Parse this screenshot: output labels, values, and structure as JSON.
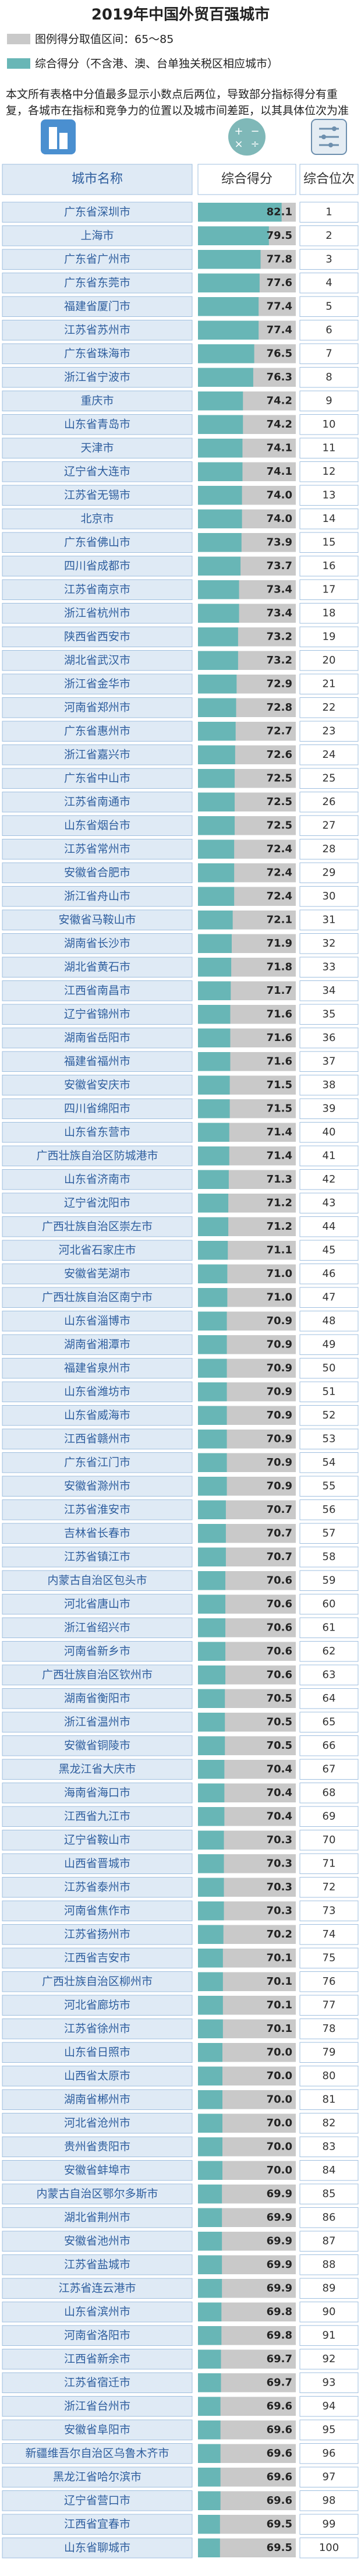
{
  "header": {
    "title": "2019年中国外贸百强城市",
    "legend_range": "图例得分取值区间：65～85",
    "legend_score": "综合得分（不含港、澳、台单独关税区相应城市）",
    "note": "本文所有表格中分值最多显示小数点后两位，导致部分指标得分有重复，各城市在指标和竞争力的位置以及城市间差距，以其具体位次为准"
  },
  "table": {
    "columns": [
      "城市名称",
      "综合得分",
      "综合位次"
    ],
    "xlim": [
      65,
      85
    ],
    "names": [
      "广东省深圳市",
      "上海市",
      "广东省广州市",
      "广东省东莞市",
      "福建省厦门市",
      "江苏省苏州市",
      "广东省珠海市",
      "浙江省宁波市",
      "重庆市",
      "山东省青岛市",
      "天津市",
      "辽宁省大连市",
      "江苏省无锡市",
      "北京市",
      "广东省佛山市",
      "四川省成都市",
      "江苏省南京市",
      "浙江省杭州市",
      "陕西省西安市",
      "湖北省武汉市",
      "浙江省金华市",
      "河南省郑州市",
      "广东省惠州市",
      "浙江省嘉兴市",
      "广东省中山市",
      "江苏省南通市",
      "山东省烟台市",
      "江苏省常州市",
      "安徽省合肥市",
      "浙江省舟山市",
      "安徽省马鞍山市",
      "湖南省长沙市",
      "湖北省黄石市",
      "江西省南昌市",
      "辽宁省锦州市",
      "湖南省岳阳市",
      "福建省福州市",
      "安徽省安庆市",
      "四川省绵阳市",
      "山东省东营市",
      "广西壮族自治区防城港市",
      "山东省济南市",
      "辽宁省沈阳市",
      "广西壮族自治区崇左市",
      "河北省石家庄市",
      "安徽省芜湖市",
      "广西壮族自治区南宁市",
      "山东省淄博市",
      "湖南省湘潭市",
      "福建省泉州市",
      "山东省潍坊市",
      "山东省威海市",
      "江西省赣州市",
      "广东省江门市",
      "安徽省滁州市",
      "江苏省淮安市",
      "吉林省长春市",
      "江苏省镇江市",
      "内蒙古自治区包头市",
      "河北省唐山市",
      "浙江省绍兴市",
      "河南省新乡市",
      "广西壮族自治区钦州市",
      "湖南省衡阳市",
      "浙江省温州市",
      "安徽省铜陵市",
      "黑龙江省大庆市",
      "海南省海口市",
      "江西省九江市",
      "辽宁省鞍山市",
      "山西省晋城市",
      "江苏省泰州市",
      "河南省焦作市",
      "江苏省扬州市",
      "江西省吉安市",
      "广西壮族自治区柳州市",
      "河北省廊坊市",
      "江苏省徐州市",
      "山东省日照市",
      "山西省太原市",
      "湖南省郴州市",
      "河北省沧州市",
      "贵州省贵阳市",
      "安徽省蚌埠市",
      "内蒙古自治区鄂尔多斯市",
      "湖北省荆州市",
      "安徽省池州市",
      "江苏省盐城市",
      "江苏省连云港市",
      "山东省滨州市",
      "河南省洛阳市",
      "江西省新余市",
      "江苏省宿迁市",
      "浙江省台州市",
      "安徽省阜阳市",
      "新疆维吾尔自治区乌鲁木齐市",
      "黑龙江省哈尔滨市",
      "辽宁省营口市",
      "江西省宜春市",
      "山东省聊城市"
    ],
    "scores": [
      82.1,
      79.5,
      77.8,
      77.6,
      77.4,
      77.4,
      76.5,
      76.3,
      74.2,
      74.2,
      74.1,
      74.1,
      74,
      74,
      73.9,
      73.7,
      73.4,
      73.4,
      73.2,
      73.2,
      72.9,
      72.8,
      72.7,
      72.6,
      72.5,
      72.5,
      72.5,
      72.4,
      72.4,
      72.4,
      72.1,
      71.9,
      71.8,
      71.7,
      71.6,
      71.6,
      71.6,
      71.5,
      71.5,
      71.4,
      71.4,
      71.3,
      71.2,
      71.2,
      71.1,
      71,
      71,
      70.9,
      70.9,
      70.9,
      70.9,
      70.9,
      70.9,
      70.9,
      70.9,
      70.7,
      70.7,
      70.7,
      70.6,
      70.6,
      70.6,
      70.6,
      70.6,
      70.5,
      70.5,
      70.5,
      70.4,
      70.4,
      70.4,
      70.3,
      70.3,
      70.3,
      70.3,
      70.2,
      70.1,
      70.1,
      70.1,
      70.1,
      70,
      70,
      70,
      70,
      70,
      70,
      69.9,
      69.9,
      69.9,
      69.9,
      69.9,
      69.8,
      69.8,
      69.7,
      69.7,
      69.6,
      69.6,
      69.6,
      69.6,
      69.6,
      69.5,
      69.5
    ],
    "score_labels": [
      "82.1",
      "79.5",
      "77.8",
      "77.6",
      "77.4",
      "77.4",
      "76.5",
      "76.3",
      "74.2",
      "74.2",
      "74.1",
      "74.1",
      "74.0",
      "74.0",
      "73.9",
      "73.7",
      "73.4",
      "73.4",
      "73.2",
      "73.2",
      "72.9",
      "72.8",
      "72.7",
      "72.6",
      "72.5",
      "72.5",
      "72.5",
      "72.4",
      "72.4",
      "72.4",
      "72.1",
      "71.9",
      "71.8",
      "71.7",
      "71.6",
      "71.6",
      "71.6",
      "71.5",
      "71.5",
      "71.4",
      "71.4",
      "71.3",
      "71.2",
      "71.2",
      "71.1",
      "71.0",
      "71.0",
      "70.9",
      "70.9",
      "70.9",
      "70.9",
      "70.9",
      "70.9",
      "70.9",
      "70.9",
      "70.7",
      "70.7",
      "70.7",
      "70.6",
      "70.6",
      "70.6",
      "70.6",
      "70.6",
      "70.5",
      "70.5",
      "70.5",
      "70.4",
      "70.4",
      "70.4",
      "70.3",
      "70.3",
      "70.3",
      "70.3",
      "70.2",
      "70.1",
      "70.1",
      "70.1",
      "70.1",
      "70.0",
      "70.0",
      "70.0",
      "70.0",
      "70.0",
      "70.0",
      "69.9",
      "69.9",
      "69.9",
      "69.9",
      "69.9",
      "69.8",
      "69.8",
      "69.7",
      "69.7",
      "69.6",
      "69.6",
      "69.6",
      "69.6",
      "69.6",
      "69.5",
      "69.5"
    ],
    "ranks": [
      1,
      2,
      3,
      4,
      5,
      6,
      7,
      8,
      9,
      10,
      11,
      12,
      13,
      14,
      15,
      16,
      17,
      18,
      19,
      20,
      21,
      22,
      23,
      24,
      25,
      26,
      27,
      28,
      29,
      30,
      31,
      32,
      33,
      34,
      35,
      36,
      37,
      38,
      39,
      40,
      41,
      42,
      43,
      44,
      45,
      46,
      47,
      48,
      49,
      50,
      51,
      52,
      53,
      54,
      55,
      56,
      57,
      58,
      59,
      60,
      61,
      62,
      63,
      64,
      65,
      66,
      67,
      68,
      69,
      70,
      71,
      72,
      73,
      74,
      75,
      76,
      77,
      78,
      79,
      80,
      81,
      82,
      83,
      84,
      85,
      86,
      87,
      88,
      89,
      90,
      91,
      92,
      93,
      94,
      95,
      96,
      97,
      98,
      99,
      100
    ]
  }
}
